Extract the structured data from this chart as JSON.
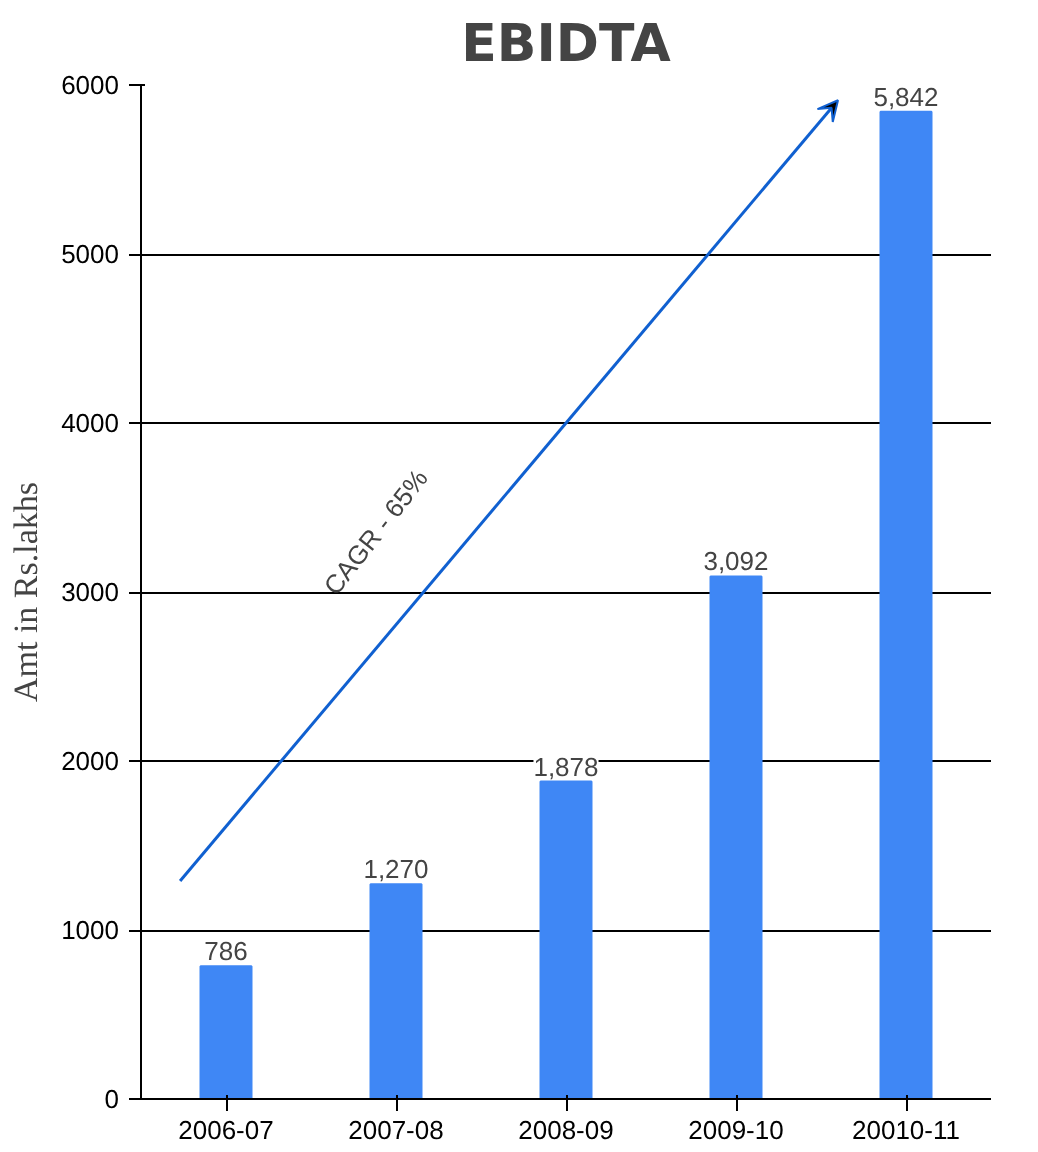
{
  "chart_data": {
    "type": "bar",
    "title": "EBIDTA",
    "ylabel": "Amt in Rs.lakhs",
    "categories": [
      "2006-07",
      "2007-08",
      "2008-09",
      "2009-10",
      "20010-11"
    ],
    "values": [
      786,
      1270,
      1878,
      3092,
      5842
    ],
    "value_labels": [
      "786",
      "1,270",
      "1,878",
      "3,092",
      "5,842"
    ],
    "color": "#3f87f5",
    "ylim": [
      0,
      6000
    ],
    "yticks": [
      0,
      1000,
      2000,
      3000,
      4000,
      5000,
      6000
    ],
    "grid": "y",
    "annotations": [
      "CAGR - 65%"
    ]
  }
}
